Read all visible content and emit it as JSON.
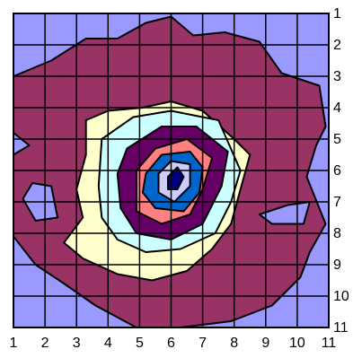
{
  "chart_data": {
    "type": "heatmap",
    "subtype": "filled-contour",
    "title": "",
    "xlabel": "",
    "ylabel": "",
    "x_ticks": [
      "1",
      "2",
      "3",
      "4",
      "5",
      "6",
      "7",
      "8",
      "9",
      "10",
      "11"
    ],
    "y_ticks": [
      "1",
      "2",
      "3",
      "4",
      "5",
      "6",
      "7",
      "8",
      "9",
      "10",
      "11"
    ],
    "xlim": [
      1,
      11
    ],
    "ylim": [
      1,
      11
    ],
    "y_axis_side": "right",
    "y_direction": "top-to-bottom",
    "grid": true,
    "legend": "none",
    "peak": {
      "x": 6,
      "y": 6
    },
    "levels": [
      {
        "band": 1,
        "color": "#9999FF"
      },
      {
        "band": 2,
        "color": "#993366"
      },
      {
        "band": 3,
        "color": "#FFFFCC"
      },
      {
        "band": 4,
        "color": "#CCFFFF"
      },
      {
        "band": 5,
        "color": "#660066"
      },
      {
        "band": 6,
        "color": "#FF8080"
      },
      {
        "band": 7,
        "color": "#0066CC"
      },
      {
        "band": 8,
        "color": "#CCCCFF"
      },
      {
        "band": 9,
        "color": "#000080"
      }
    ],
    "contours": [
      {
        "band": 2,
        "points": [
          [
            1,
            3
          ],
          [
            2.2,
            2.5
          ],
          [
            3.3,
            1.8
          ],
          [
            4.3,
            1.8
          ],
          [
            5.2,
            1.3
          ],
          [
            6,
            1.1
          ],
          [
            6.7,
            1.7
          ],
          [
            7.7,
            1.6
          ],
          [
            8.8,
            1.9
          ],
          [
            9.5,
            2.9
          ],
          [
            10.7,
            3.3
          ],
          [
            10.9,
            4.6
          ],
          [
            10.6,
            5.2
          ],
          [
            10.3,
            6.2
          ],
          [
            10.9,
            7.7
          ],
          [
            10.4,
            8.6
          ],
          [
            10.1,
            9.4
          ],
          [
            9.2,
            10.3
          ],
          [
            7.9,
            10.8
          ],
          [
            6.3,
            11
          ],
          [
            4.9,
            11
          ],
          [
            3.6,
            10.3
          ],
          [
            2.6,
            9.6
          ],
          [
            1.7,
            9
          ],
          [
            1,
            8.1
          ],
          [
            1,
            5.5
          ],
          [
            1.5,
            5.2
          ],
          [
            1,
            4.8
          ]
        ]
      },
      {
        "band": 1,
        "hole": true,
        "points": [
          [
            1.3,
            6.9
          ],
          [
            1.6,
            6.4
          ],
          [
            2.2,
            6.5
          ],
          [
            2.4,
            7.5
          ],
          [
            1.7,
            7.6
          ]
        ]
      },
      {
        "band": 1,
        "hole": true,
        "points": [
          [
            8.8,
            7.4
          ],
          [
            9.7,
            7.1
          ],
          [
            10.4,
            7
          ],
          [
            10.2,
            7.7
          ],
          [
            9.2,
            7.7
          ]
        ]
      },
      {
        "band": 3,
        "points": [
          [
            3.3,
            4.4
          ],
          [
            4,
            4.1
          ],
          [
            5.1,
            4
          ],
          [
            6,
            3.8
          ],
          [
            7,
            4.1
          ],
          [
            8,
            5
          ],
          [
            8.5,
            5.5
          ],
          [
            8.2,
            6.6
          ],
          [
            7.9,
            7.7
          ],
          [
            7.3,
            8.5
          ],
          [
            6.5,
            9.2
          ],
          [
            5.4,
            9.5
          ],
          [
            4.3,
            9.3
          ],
          [
            3.2,
            8.8
          ],
          [
            2.6,
            8.3
          ],
          [
            3.2,
            7.5
          ],
          [
            3,
            6.6
          ],
          [
            3.3,
            5.5
          ]
        ]
      },
      {
        "band": 4,
        "points": [
          [
            3.8,
            5
          ],
          [
            4.8,
            4.3
          ],
          [
            6,
            4.1
          ],
          [
            7.5,
            4.4
          ],
          [
            8.2,
            6
          ],
          [
            7.9,
            7
          ],
          [
            7.4,
            8
          ],
          [
            6.3,
            8.5
          ],
          [
            5.2,
            8.6
          ],
          [
            4.3,
            8.2
          ],
          [
            3.8,
            7.5
          ],
          [
            3.7,
            6.5
          ]
        ]
      },
      {
        "band": 5,
        "points": [
          [
            4.6,
            5.3
          ],
          [
            5.7,
            4.6
          ],
          [
            6.8,
            4.6
          ],
          [
            7.8,
            5.4
          ],
          [
            7.6,
            6.5
          ],
          [
            7,
            7.7
          ],
          [
            6,
            8.2
          ],
          [
            4.9,
            8
          ],
          [
            4.4,
            7.2
          ],
          [
            4.3,
            6.1
          ]
        ]
      },
      {
        "band": 6,
        "points": [
          [
            4.9,
            6
          ],
          [
            5.5,
            5.3
          ],
          [
            6.5,
            5
          ],
          [
            7.3,
            5.6
          ],
          [
            7,
            6.6
          ],
          [
            6.6,
            7.4
          ],
          [
            5.7,
            7.7
          ],
          [
            4.9,
            7.3
          ]
        ]
      },
      {
        "band": 7,
        "points": [
          [
            5.2,
            6.1
          ],
          [
            5.7,
            5.5
          ],
          [
            6.6,
            5.4
          ],
          [
            7,
            5.9
          ],
          [
            6.9,
            6.7
          ],
          [
            6.4,
            7.3
          ],
          [
            5.5,
            7.2
          ],
          [
            5.1,
            6.7
          ]
        ]
      },
      {
        "band": 8,
        "points": [
          [
            5.6,
            6.1
          ],
          [
            6,
            5.7
          ],
          [
            6.6,
            5.8
          ],
          [
            6.6,
            6.5
          ],
          [
            6.1,
            7
          ],
          [
            5.6,
            6.7
          ]
        ]
      },
      {
        "band": 9,
        "points": [
          [
            5.9,
            6.2
          ],
          [
            6.2,
            5.9
          ],
          [
            6.4,
            6.2
          ],
          [
            6.2,
            6.6
          ],
          [
            5.9,
            6.6
          ]
        ]
      }
    ]
  }
}
